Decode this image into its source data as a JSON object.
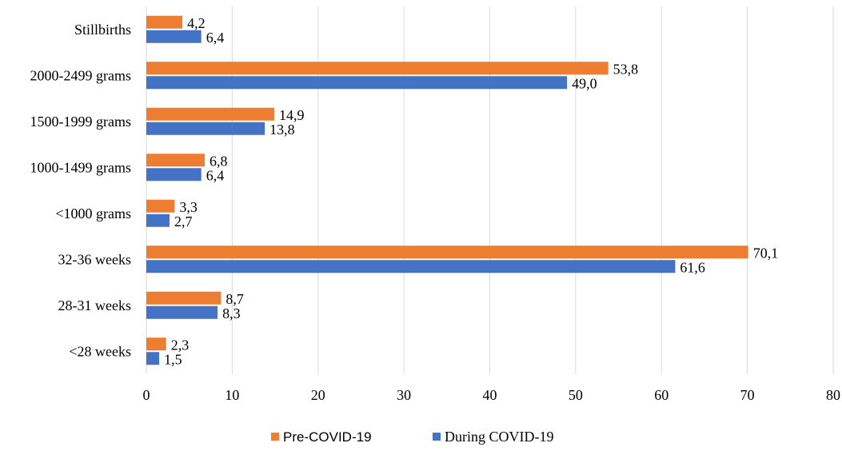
{
  "chart_data": {
    "type": "bar",
    "orientation": "horizontal",
    "categories": [
      "Stillbirths",
      "2000-2499 grams",
      "1500-1999 grams",
      "1000-1499 grams",
      "<1000 grams",
      "32-36 weeks",
      "28-31 weeks",
      "<28 weeks"
    ],
    "series": [
      {
        "name": "Pre-COVID-19",
        "color": "#ED7D31",
        "values": [
          4.2,
          53.8,
          14.9,
          6.8,
          3.3,
          70.1,
          8.7,
          2.3
        ],
        "labels": [
          "4,2",
          "53,8",
          "14,9",
          "6,8",
          "3,3",
          "70,1",
          "8,7",
          "2,3"
        ]
      },
      {
        "name": "During COVID-19",
        "color": "#4472C4",
        "values": [
          6.4,
          49.0,
          13.8,
          6.4,
          2.7,
          61.6,
          8.3,
          1.5
        ],
        "labels": [
          "6,4",
          "49,0",
          "13,8",
          "6,4",
          "2,7",
          "61,6",
          "8,3",
          "1,5"
        ]
      }
    ],
    "xlim": [
      0,
      80
    ],
    "xticks": [
      0,
      10,
      20,
      30,
      40,
      50,
      60,
      70,
      80
    ],
    "grid": true,
    "legend_position": "bottom",
    "title": "",
    "xlabel": "",
    "ylabel": ""
  },
  "colors": {
    "grid": "#D9D9D9"
  }
}
